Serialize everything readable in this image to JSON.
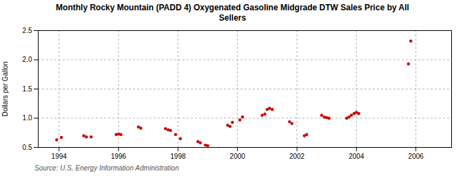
{
  "chart_data": {
    "type": "scatter",
    "title": "Monthly Rocky Mountain (PADD 4) Oxygenated Gasoline Midgrade DTW Sales Price by All\nSellers",
    "ylabel": "Dollars per Gallon",
    "annotations": [
      "Source: U.S. Energy Information Administration"
    ],
    "color": "#cc0000",
    "grid": true,
    "xlim": [
      1993.3,
      2007.2
    ],
    "ylim": [
      0.5,
      2.5
    ],
    "xticks": [
      1994,
      1996,
      1998,
      2000,
      2002,
      2004,
      2006
    ],
    "yticks": [
      0.5,
      {
        "value": 1.0,
        "label": "1.0"
      },
      1.5,
      {
        "value": 2.0,
        "label": "2.0"
      },
      2.5
    ],
    "x": [
      1993.92,
      1994.08,
      1994.83,
      1994.92,
      1995.08,
      1995.92,
      1996.0,
      1996.08,
      1996.67,
      1996.75,
      1997.58,
      1997.67,
      1997.75,
      1997.92,
      1998.08,
      1998.67,
      1998.75,
      1998.92,
      1999.0,
      1999.67,
      1999.75,
      1999.83,
      2000.08,
      2000.17,
      2000.83,
      2000.92,
      2001.0,
      2001.08,
      2001.17,
      2001.75,
      2001.83,
      2002.25,
      2002.33,
      2002.83,
      2002.92,
      2003.0,
      2003.08,
      2003.67,
      2003.75,
      2003.83,
      2003.92,
      2004.0,
      2004.08,
      2005.75,
      2005.83
    ],
    "values": [
      0.63,
      0.67,
      0.7,
      0.68,
      0.68,
      0.72,
      0.73,
      0.72,
      0.85,
      0.83,
      0.82,
      0.8,
      0.79,
      0.72,
      0.65,
      0.6,
      0.58,
      0.54,
      0.53,
      0.88,
      0.86,
      0.93,
      0.97,
      1.02,
      1.05,
      1.07,
      1.15,
      1.17,
      1.15,
      0.94,
      0.91,
      0.7,
      0.72,
      1.05,
      1.02,
      1.01,
      1.0,
      1.0,
      1.02,
      1.05,
      1.08,
      1.1,
      1.08,
      1.93,
      2.32
    ]
  }
}
